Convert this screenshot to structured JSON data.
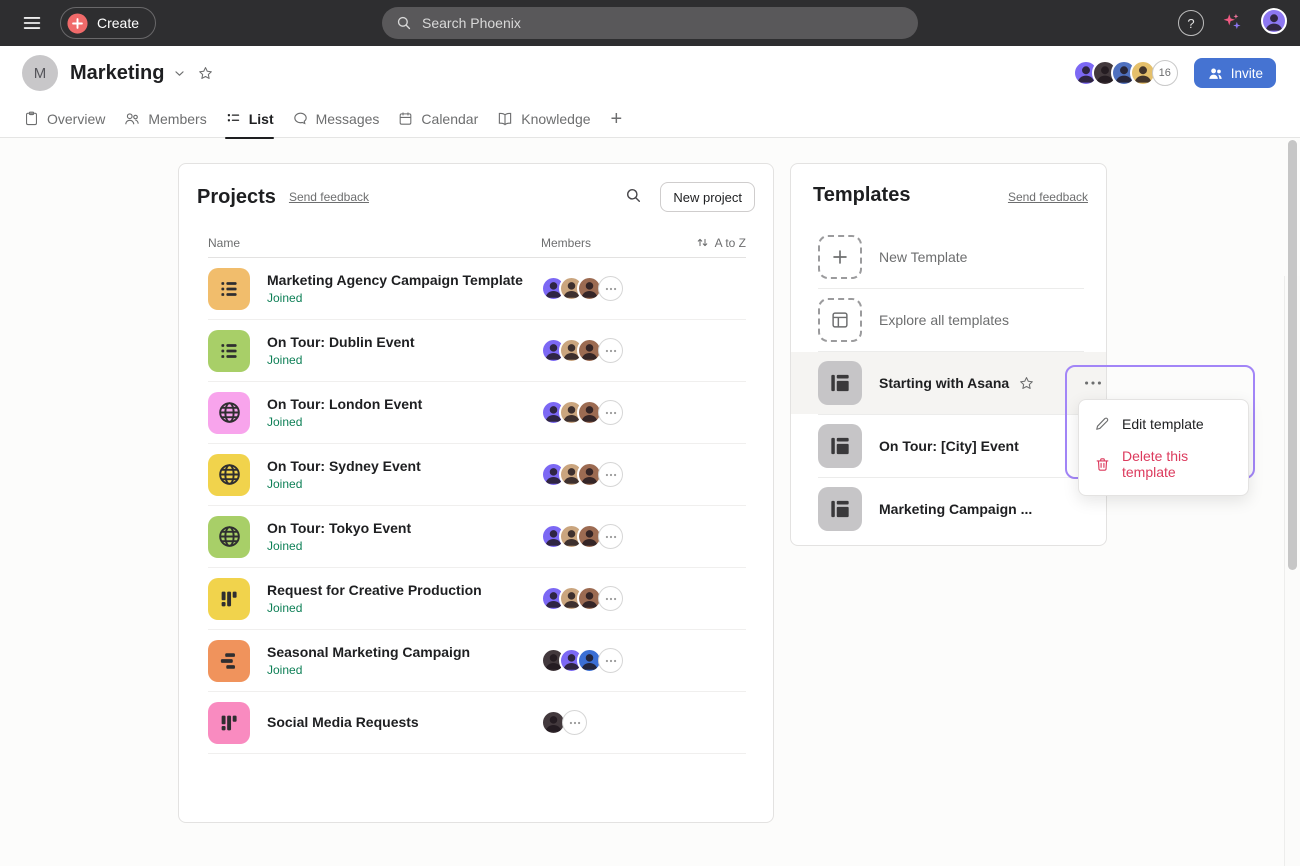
{
  "topbar": {
    "create_label": "Create",
    "search_placeholder": "Search Phoenix",
    "help_label": "?"
  },
  "header": {
    "team_initial": "M",
    "team_name": "Marketing",
    "member_avatars": [
      "#7c68f4",
      "#43393d",
      "#4f71c0",
      "#e5c06b"
    ],
    "member_count": "16",
    "invite_label": "Invite"
  },
  "tabs": {
    "items": [
      {
        "label": "Overview",
        "icon": "clipboard",
        "active": false
      },
      {
        "label": "Members",
        "icon": "people",
        "active": false
      },
      {
        "label": "List",
        "icon": "list-tab",
        "active": true
      },
      {
        "label": "Messages",
        "icon": "chat",
        "active": false
      },
      {
        "label": "Calendar",
        "icon": "calendar",
        "active": false
      },
      {
        "label": "Knowledge",
        "icon": "book",
        "active": false
      }
    ],
    "add_label": "+"
  },
  "projects": {
    "title": "Projects",
    "feedback_link": "Send feedback",
    "new_project_label": "New project",
    "columns": {
      "name": "Name",
      "members": "Members",
      "sort_label": "A to Z"
    },
    "rows": [
      {
        "name": "Marketing Agency Campaign Template",
        "status": "Joined",
        "icon": "list",
        "color": "#f1bd6c",
        "avatars": [
          "#7c68f4",
          "#caa57e",
          "#9c6b52"
        ],
        "more": true
      },
      {
        "name": "On Tour: Dublin Event",
        "status": "Joined",
        "icon": "list",
        "color": "#a8cf68",
        "avatars": [
          "#7c68f4",
          "#caa57e",
          "#9c6b52"
        ],
        "more": true
      },
      {
        "name": "On Tour: London Event",
        "status": "Joined",
        "icon": "globe",
        "color": "#f8a4ec",
        "avatars": [
          "#7c68f4",
          "#caa57e",
          "#9c6b52"
        ],
        "more": true
      },
      {
        "name": "On Tour: Sydney Event",
        "status": "Joined",
        "icon": "globe",
        "color": "#f1d34c",
        "avatars": [
          "#7c68f4",
          "#caa57e",
          "#9c6b52"
        ],
        "more": true
      },
      {
        "name": "On Tour: Tokyo Event",
        "status": "Joined",
        "icon": "globe",
        "color": "#a8cf68",
        "avatars": [
          "#7c68f4",
          "#caa57e",
          "#9c6b52"
        ],
        "more": true
      },
      {
        "name": "Request for Creative Production",
        "status": "Joined",
        "icon": "board",
        "color": "#f1d34c",
        "avatars": [
          "#7c68f4",
          "#caa57e",
          "#9c6b52"
        ],
        "more": true
      },
      {
        "name": "Seasonal Marketing Campaign",
        "status": "Joined",
        "icon": "timeline",
        "color": "#f0935c",
        "avatars": [
          "#43393d",
          "#7c68f4",
          "#3b6fd4"
        ],
        "more": true
      },
      {
        "name": "Social Media Requests",
        "status": "",
        "icon": "board",
        "color": "#f98bc0",
        "avatars": [
          "#43393d"
        ],
        "more": true
      }
    ],
    "status_color": "#0d7f56"
  },
  "templates": {
    "title": "Templates",
    "feedback_link": "Send feedback",
    "actions": [
      {
        "label": "New Template",
        "icon": "plus"
      },
      {
        "label": "Explore all templates",
        "icon": "template-outline"
      }
    ],
    "items": [
      {
        "name": "Starting with Asana",
        "starred": true,
        "highlighted": true
      },
      {
        "name": "On Tour: [City] Event",
        "starred": false,
        "highlighted": false
      },
      {
        "name": "Marketing Campaign ...",
        "starred": false,
        "highlighted": false
      }
    ]
  },
  "context_menu": {
    "items": [
      {
        "label": "Edit template",
        "icon": "pencil",
        "danger": false
      },
      {
        "label": "Delete this template",
        "icon": "trash",
        "danger": true
      }
    ],
    "accent_color": "#a285f7",
    "danger_color": "#dc3a5d"
  }
}
